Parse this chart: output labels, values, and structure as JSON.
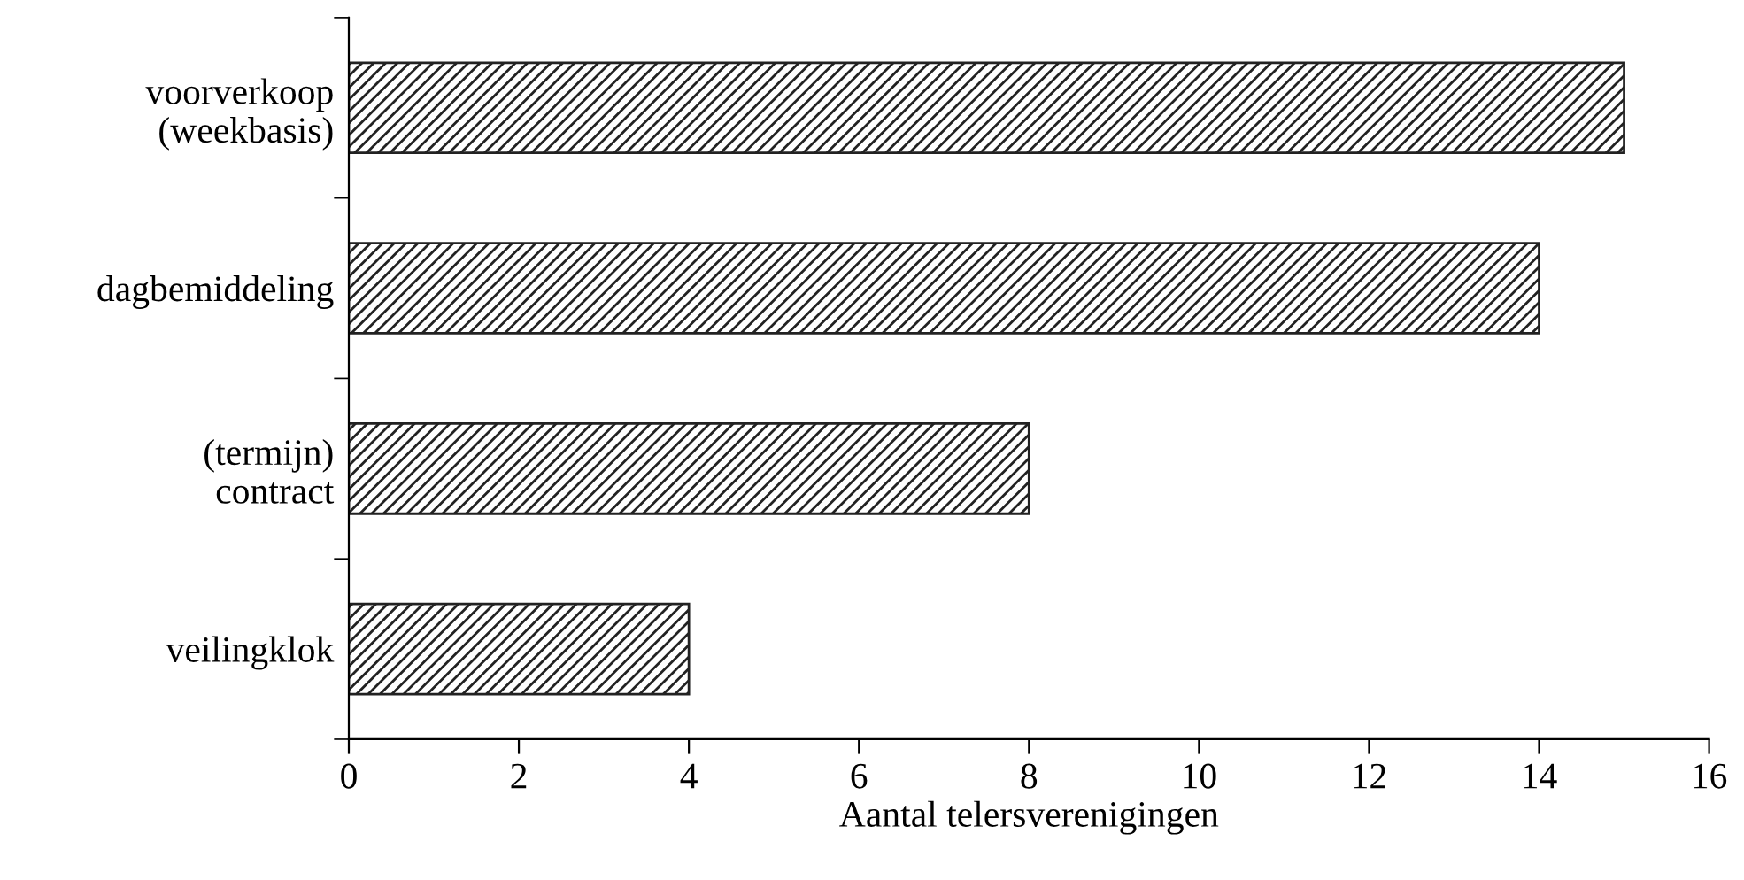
{
  "chart_data": {
    "type": "bar",
    "orientation": "horizontal",
    "categories": [
      "voorverkoop\n(weekbasis)",
      "dagbemiddeling",
      "(termijn)\ncontract",
      "veilingklok"
    ],
    "values": [
      15,
      14,
      8,
      4
    ],
    "color": "#222222",
    "xlabel": "Aantal telersverenigingen",
    "xlim": [
      0,
      16
    ],
    "xticks": [
      0,
      2,
      4,
      6,
      8,
      10,
      12,
      14,
      16
    ],
    "grid": false,
    "legend": false
  }
}
